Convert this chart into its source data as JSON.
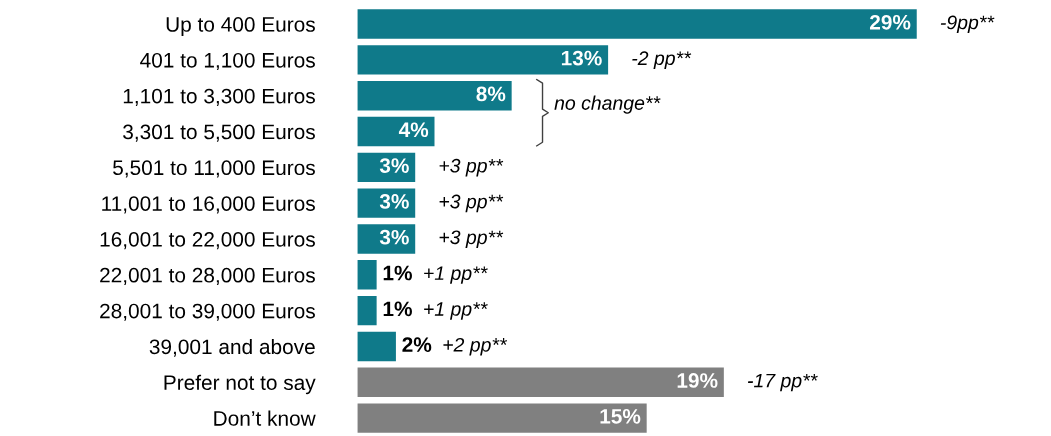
{
  "chart_data": {
    "type": "bar",
    "orientation": "horizontal",
    "data_labels": true,
    "categories": [
      "Up to 400 Euros",
      "401 to 1,100 Euros",
      "1,101 to 3,300 Euros",
      "3,301 to 5,500 Euros",
      "5,501 to 11,000 Euros",
      "11,001 to 16,000 Euros",
      "16,001 to 22,000 Euros",
      "22,001 to 28,000 Euros",
      "28,001 to 39,000 Euros",
      "39,001 and above",
      "Prefer not to say",
      "Don’t know"
    ],
    "values": [
      29,
      13,
      8,
      4,
      3,
      3,
      3,
      1,
      1,
      2,
      19,
      15
    ],
    "value_labels": [
      "29%",
      "13%",
      "8%",
      "4%",
      "3%",
      "3%",
      "3%",
      "1%",
      "1%",
      "2%",
      "19%",
      "15%"
    ],
    "colors": [
      "#0f7a8a",
      "#0f7a8a",
      "#0f7a8a",
      "#0f7a8a",
      "#0f7a8a",
      "#0f7a8a",
      "#0f7a8a",
      "#0f7a8a",
      "#0f7a8a",
      "#0f7a8a",
      "#808080",
      "#808080"
    ],
    "annotations": [
      {
        "text": "-9pp**",
        "x": 29,
        "y": "Up to 400 Euros"
      },
      {
        "text": "-2 pp**",
        "x": 13,
        "y": "401 to 1,100 Euros"
      },
      {
        "text": "no change**",
        "x": 8,
        "y": "1,101 to 3,300 Euros"
      },
      {
        "text": "+3 pp**",
        "x": 3,
        "y": "5,501 to 11,000 Euros"
      },
      {
        "text": "+3 pp**",
        "x": 3,
        "y": "11,001 to 16,000 Euros"
      },
      {
        "text": "+3 pp**",
        "x": 3,
        "y": "16,001 to 22,000 Euros"
      },
      {
        "text": "+1 pp**",
        "x": 1,
        "y": "22,001 to 28,000 Euros"
      },
      {
        "text": "+1 pp**",
        "x": 1,
        "y": "28,001 to 39,000 Euros"
      },
      {
        "text": "+2 pp**",
        "x": 2,
        "y": "39,001 and above"
      },
      {
        "text": "-17 pp**",
        "x": 19,
        "y": "Prefer not to say"
      }
    ]
  }
}
